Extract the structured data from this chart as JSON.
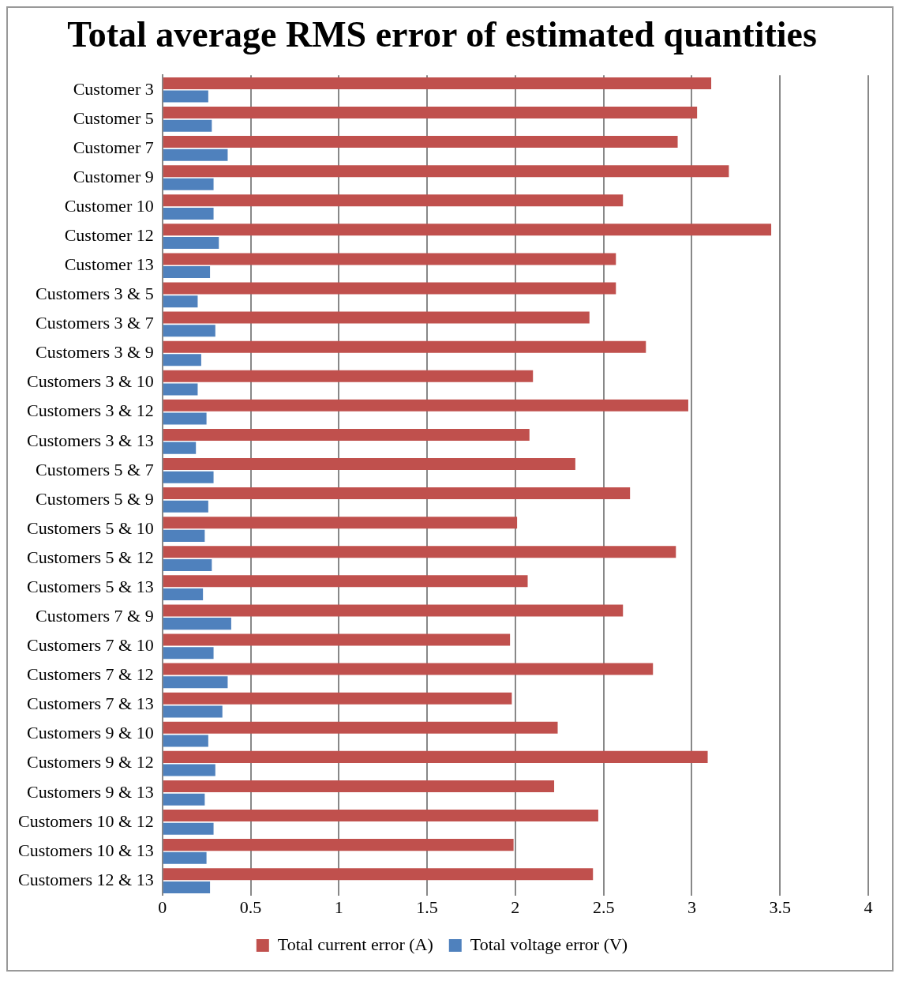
{
  "chart_data": {
    "type": "bar",
    "orientation": "horizontal",
    "title": "Total average RMS error of estimated quantities",
    "categories": [
      "Customer 3",
      "Customer 5",
      "Customer 7",
      "Customer 9",
      "Customer 10",
      "Customer 12",
      "Customer 13",
      "Customers 3 & 5",
      "Customers 3 & 7",
      "Customers 3 & 9",
      "Customers 3 & 10",
      "Customers 3 & 12",
      "Customers 3 & 13",
      "Customers 5 & 7",
      "Customers 5 & 9",
      "Customers 5 & 10",
      "Customers 5 & 12",
      "Customers 5 & 13",
      "Customers 7 & 9",
      "Customers 7 & 10",
      "Customers 7 & 12",
      "Customers 7 & 13",
      "Customers 9 & 10",
      "Customers 9 & 12",
      "Customers 9 & 13",
      "Customers 10 & 12",
      "Customers 10 & 13",
      "Customers 12 & 13"
    ],
    "series": [
      {
        "name": "Total current error (A)",
        "color": "#c0504d",
        "values": [
          3.11,
          3.03,
          2.92,
          3.21,
          2.61,
          3.45,
          2.57,
          2.57,
          2.42,
          2.74,
          2.1,
          2.98,
          2.08,
          2.34,
          2.65,
          2.01,
          2.91,
          2.07,
          2.61,
          1.97,
          2.78,
          1.98,
          2.24,
          3.09,
          2.22,
          2.47,
          1.99,
          2.44
        ]
      },
      {
        "name": "Total voltage error (V)",
        "color": "#4f81bd",
        "values": [
          0.26,
          0.28,
          0.37,
          0.29,
          0.29,
          0.32,
          0.27,
          0.2,
          0.3,
          0.22,
          0.2,
          0.25,
          0.19,
          0.29,
          0.26,
          0.24,
          0.28,
          0.23,
          0.39,
          0.29,
          0.37,
          0.34,
          0.26,
          0.3,
          0.24,
          0.29,
          0.25,
          0.27
        ]
      }
    ],
    "xlim": [
      0,
      4
    ],
    "xticks": [
      0,
      0.5,
      1,
      1.5,
      2,
      2.5,
      3,
      3.5,
      4
    ],
    "grid": "x",
    "legend": "bottom"
  }
}
